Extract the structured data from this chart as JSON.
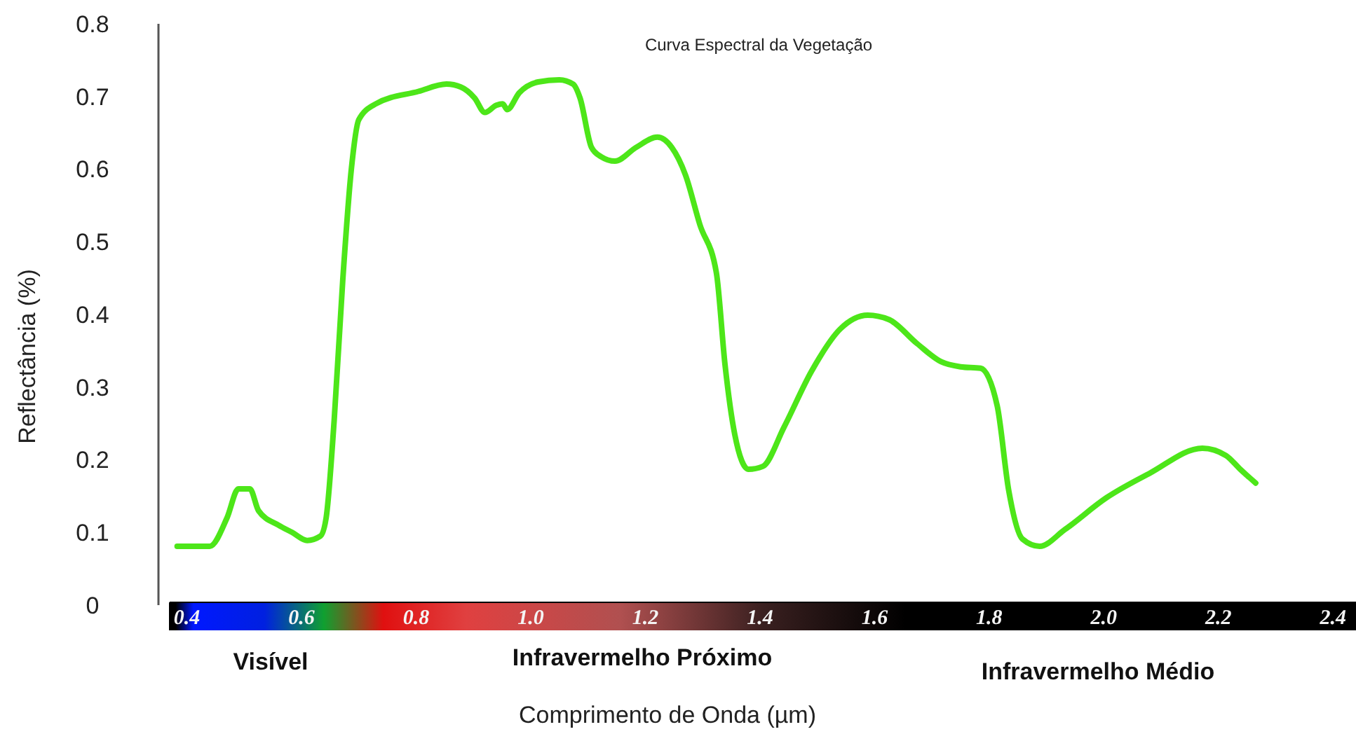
{
  "chart_data": {
    "type": "line",
    "title": "Curva Espectral da Vegetação",
    "xlabel": "Comprimento de Onda (µm)",
    "ylabel": "Reflectância (%)",
    "annotations": [
      "Visível",
      "Infravermelho Próximo",
      "Infravermelho Médio"
    ],
    "xlim": [
      0.37,
      2.44
    ],
    "ylim": [
      0,
      0.8
    ],
    "xticks": [
      {
        "value": 0.4,
        "label": "0.4"
      },
      {
        "value": 0.6,
        "label": "0.6"
      },
      {
        "value": 0.8,
        "label": "0.8"
      },
      {
        "value": 1.0,
        "label": "1.0"
      },
      {
        "value": 1.2,
        "label": "1.2"
      },
      {
        "value": 1.4,
        "label": "1.4"
      },
      {
        "value": 1.6,
        "label": "1.6"
      },
      {
        "value": 1.8,
        "label": "1.8"
      },
      {
        "value": 2.0,
        "label": "2.0"
      },
      {
        "value": 2.2,
        "label": "2.2"
      },
      {
        "value": 2.4,
        "label": "2.4"
      }
    ],
    "yticks": [
      0,
      0.1,
      0.2,
      0.3,
      0.4,
      0.5,
      0.6,
      0.7,
      0.8
    ],
    "marker": "none",
    "line_style": "solid",
    "series": [
      {
        "color": "#4de619",
        "x": [
          0.383,
          0.44,
          0.47,
          0.49,
          0.51,
          0.525,
          0.56,
          0.584,
          0.61,
          0.633,
          0.643,
          0.657,
          0.672,
          0.687,
          0.7,
          0.73,
          0.804,
          0.853,
          0.878,
          0.902,
          0.92,
          0.94,
          0.951,
          0.959,
          0.98,
          1.013,
          1.05,
          1.074,
          1.086,
          1.106,
          1.123,
          1.147,
          1.184,
          1.221,
          1.246,
          1.27,
          1.295,
          1.324,
          1.339,
          1.356,
          1.38,
          1.405,
          1.442,
          1.49,
          1.54,
          1.588,
          1.625,
          1.674,
          1.716,
          1.75,
          1.785,
          1.814,
          1.834,
          1.858,
          1.888,
          1.932,
          2.005,
          2.079,
          2.172,
          2.213,
          2.238,
          2.265
        ],
        "values": [
          0.081,
          0.081,
          0.12,
          0.16,
          0.16,
          0.13,
          0.11,
          0.1,
          0.089,
          0.095,
          0.12,
          0.254,
          0.447,
          0.6,
          0.668,
          0.69,
          0.707,
          0.717,
          0.713,
          0.698,
          0.678,
          0.688,
          0.69,
          0.682,
          0.705,
          0.72,
          0.723,
          0.717,
          0.698,
          0.63,
          0.617,
          0.611,
          0.63,
          0.644,
          0.63,
          0.592,
          0.524,
          0.457,
          0.331,
          0.235,
          0.187,
          0.191,
          0.245,
          0.322,
          0.38,
          0.399,
          0.393,
          0.36,
          0.335,
          0.328,
          0.326,
          0.274,
          0.158,
          0.091,
          0.081,
          0.104,
          0.148,
          0.181,
          0.216,
          0.206,
          0.187,
          0.168
        ]
      }
    ]
  }
}
